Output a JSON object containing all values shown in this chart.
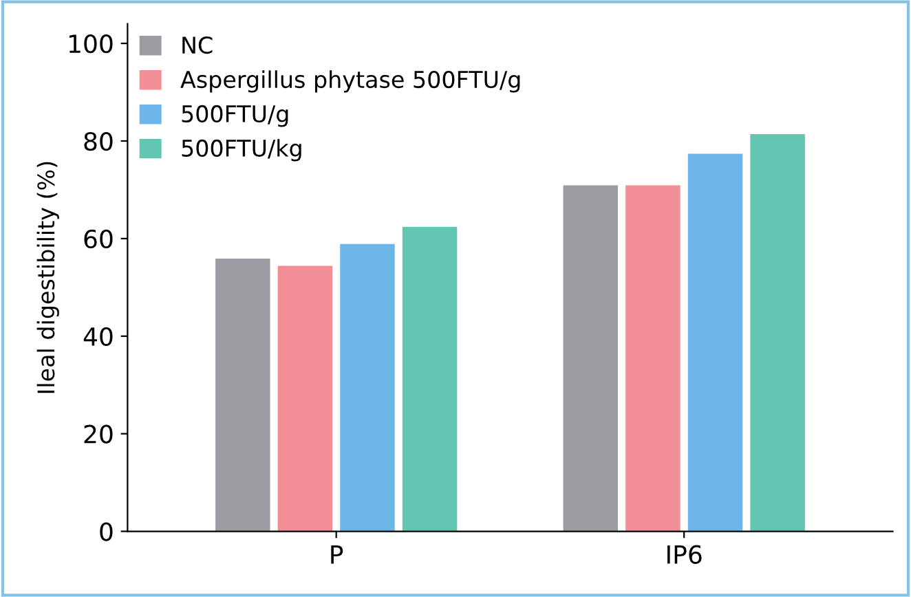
{
  "chart_data": {
    "type": "bar",
    "ylabel": "Ileal digestibility (%)",
    "categories": [
      "P",
      "IP6"
    ],
    "series": [
      {
        "name": "NC",
        "color": "#9c9ca2",
        "values": [
          56,
          71
        ]
      },
      {
        "name": "Aspergillus phytase 500FTU/g",
        "color": "#f28e96",
        "values": [
          54.5,
          71
        ]
      },
      {
        "name": "500FTU/g",
        "color": "#6cb6ea",
        "values": [
          59,
          77.5
        ]
      },
      {
        "name": "500FTU/kg",
        "color": "#62c6b2",
        "values": [
          62.5,
          81.5
        ]
      }
    ],
    "ylim": [
      0,
      104
    ],
    "yticks": [
      0,
      20,
      40,
      60,
      80,
      100
    ],
    "grid": false,
    "legend": "top left"
  }
}
